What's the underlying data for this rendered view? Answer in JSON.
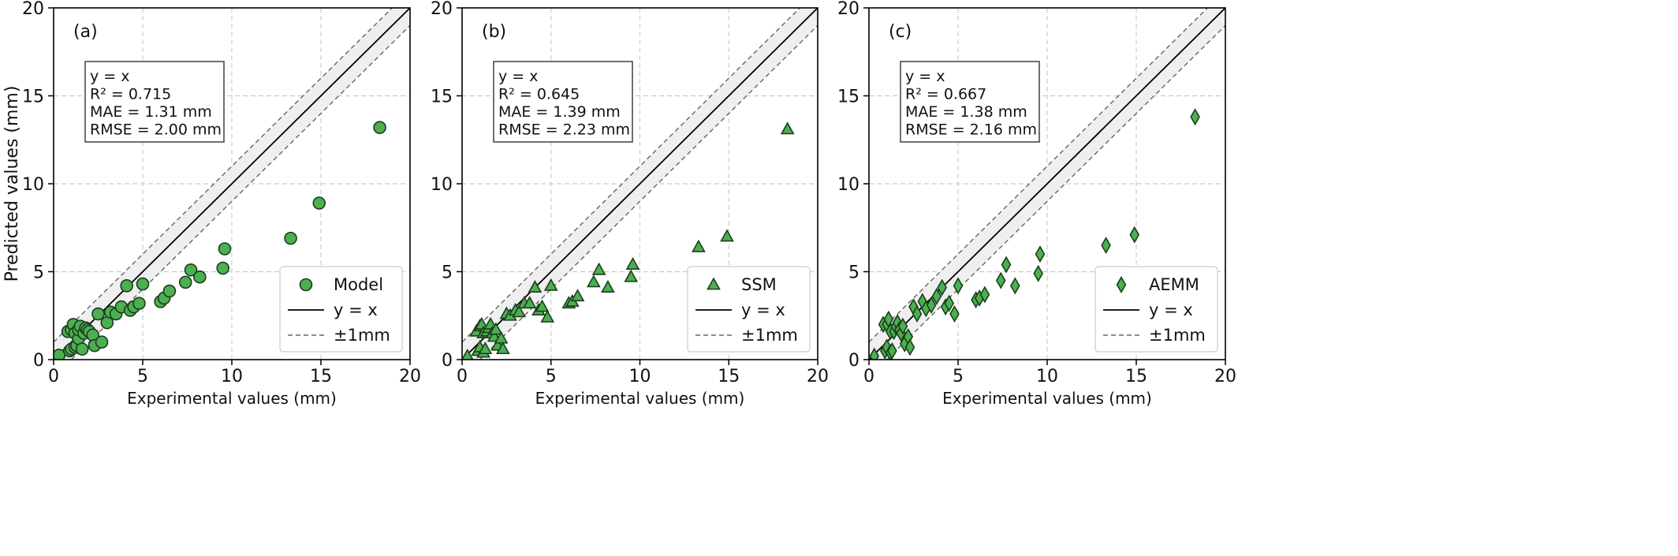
{
  "chart_data": [
    {
      "type": "scatter",
      "panel_label": "(a)",
      "xlabel": "Experimental values (mm)",
      "ylabel": "Predicted values (mm)",
      "xlim": [
        0,
        20
      ],
      "ylim": [
        0,
        20
      ],
      "xticks": [
        "0",
        "5",
        "10",
        "15",
        "20"
      ],
      "yticks": [
        "0",
        "5",
        "10",
        "15",
        "20"
      ],
      "grid": true,
      "legend_position": "lower-right",
      "legend": [
        "Model",
        "y = x",
        "±1mm"
      ],
      "stats": [
        "y = x",
        "R² = 0.715",
        "MAE = 1.31 mm",
        "RMSE = 2.00 mm"
      ],
      "marker": "circle",
      "marker_color": "#4caf50",
      "series": [
        {
          "name": "Model",
          "x": [
            0.3,
            0.8,
            0.9,
            1.0,
            1.0,
            1.1,
            1.2,
            1.2,
            1.3,
            1.4,
            1.4,
            1.5,
            1.6,
            1.7,
            1.8,
            1.9,
            2.0,
            2.2,
            2.3,
            2.5,
            2.7,
            3.0,
            3.2,
            3.5,
            3.8,
            4.1,
            4.3,
            4.5,
            4.8,
            5.0,
            6.0,
            6.2,
            6.5,
            7.4,
            7.7,
            8.2,
            9.5,
            9.6,
            13.3,
            14.9,
            18.3
          ],
          "y": [
            0.25,
            1.6,
            0.5,
            0.6,
            1.7,
            2.0,
            0.7,
            1.5,
            0.8,
            1.2,
            1.7,
            1.9,
            0.6,
            1.5,
            1.8,
            1.7,
            1.6,
            1.4,
            0.8,
            2.6,
            1.0,
            2.1,
            2.7,
            2.6,
            3.0,
            4.2,
            2.8,
            3.0,
            3.2,
            4.3,
            3.3,
            3.5,
            3.9,
            4.4,
            5.1,
            4.7,
            5.2,
            6.3,
            6.9,
            8.9,
            13.2
          ]
        }
      ]
    },
    {
      "type": "scatter",
      "panel_label": "(b)",
      "xlabel": "Experimental values (mm)",
      "ylabel": "",
      "xlim": [
        0,
        20
      ],
      "ylim": [
        0,
        20
      ],
      "xticks": [
        "0",
        "5",
        "10",
        "15",
        "20"
      ],
      "yticks": [
        "0",
        "5",
        "10",
        "15",
        "20"
      ],
      "grid": true,
      "legend_position": "lower-right",
      "legend": [
        "SSM",
        "y = x",
        "±1mm"
      ],
      "stats": [
        "y = x",
        "R² = 0.645",
        "MAE = 1.39 mm",
        "RMSE = 2.23 mm"
      ],
      "marker": "triangle",
      "marker_color": "#4caf50",
      "series": [
        {
          "name": "SSM",
          "x": [
            0.3,
            0.8,
            0.9,
            1.0,
            1.0,
            1.1,
            1.2,
            1.2,
            1.3,
            1.4,
            1.5,
            1.6,
            1.7,
            1.8,
            1.9,
            2.0,
            2.2,
            2.3,
            2.5,
            2.7,
            3.0,
            3.2,
            3.5,
            3.8,
            4.1,
            4.3,
            4.5,
            4.8,
            5.0,
            6.0,
            6.2,
            6.5,
            7.4,
            7.7,
            8.2,
            9.5,
            9.6,
            13.3,
            14.9,
            18.3
          ],
          "y": [
            0.2,
            1.6,
            0.5,
            0.7,
            1.9,
            2.0,
            0.4,
            1.5,
            0.6,
            1.6,
            1.8,
            2.0,
            1.5,
            1.3,
            1.7,
            0.8,
            1.2,
            0.6,
            2.6,
            2.5,
            2.8,
            2.7,
            3.2,
            3.2,
            4.1,
            2.8,
            3.0,
            2.4,
            4.2,
            3.2,
            3.3,
            3.6,
            4.4,
            5.1,
            4.1,
            4.7,
            5.4,
            6.4,
            7.0,
            13.1
          ]
        }
      ]
    },
    {
      "type": "scatter",
      "panel_label": "(c)",
      "xlabel": "Experimental values (mm)",
      "ylabel": "",
      "xlim": [
        0,
        20
      ],
      "ylim": [
        0,
        20
      ],
      "xticks": [
        "0",
        "5",
        "10",
        "15",
        "20"
      ],
      "yticks": [
        "0",
        "5",
        "10",
        "15",
        "20"
      ],
      "grid": true,
      "legend_position": "lower-right",
      "legend": [
        "AEMM",
        "y = x",
        "±1mm"
      ],
      "stats": [
        "y = x",
        "R² = 0.667",
        "MAE = 1.38 mm",
        "RMSE = 2.16 mm"
      ],
      "marker": "diamond",
      "marker_color": "#4caf50",
      "series": [
        {
          "name": "AEMM",
          "x": [
            0.3,
            0.8,
            0.9,
            1.0,
            1.0,
            1.1,
            1.2,
            1.2,
            1.3,
            1.4,
            1.5,
            1.6,
            1.7,
            1.8,
            1.9,
            2.0,
            2.2,
            2.3,
            2.5,
            2.7,
            3.0,
            3.2,
            3.5,
            3.8,
            4.1,
            4.3,
            4.5,
            4.8,
            5.0,
            6.0,
            6.2,
            6.5,
            7.4,
            7.7,
            8.2,
            9.5,
            9.6,
            13.3,
            14.9,
            18.3
          ],
          "y": [
            0.2,
            2.0,
            0.5,
            0.7,
            2.0,
            2.3,
            0.4,
            1.6,
            0.5,
            1.6,
            1.9,
            2.1,
            1.7,
            1.5,
            1.9,
            0.9,
            1.3,
            0.7,
            3.0,
            2.6,
            3.3,
            2.9,
            3.1,
            3.6,
            4.1,
            3.0,
            3.2,
            2.6,
            4.2,
            3.4,
            3.5,
            3.7,
            4.5,
            5.4,
            4.2,
            4.9,
            6.0,
            6.5,
            7.1,
            13.8
          ]
        }
      ]
    }
  ]
}
